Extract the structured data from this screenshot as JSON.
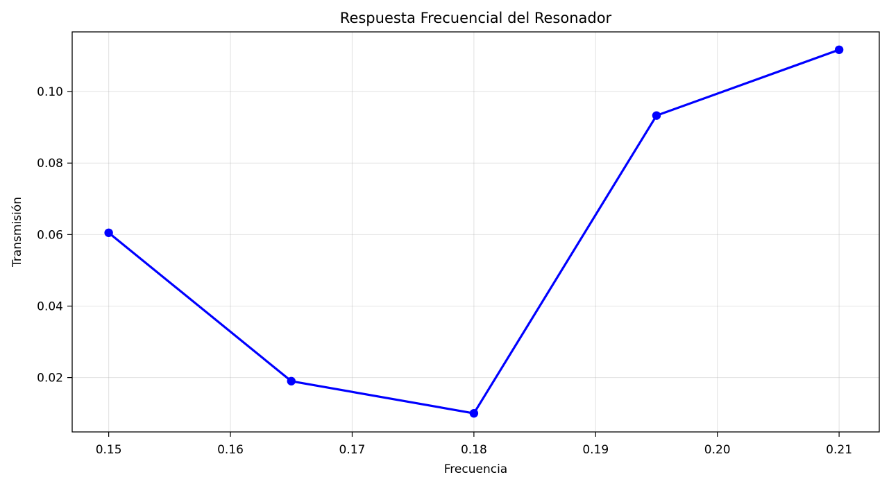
{
  "chart_data": {
    "type": "line",
    "title": "Respuesta Frecuencial del Resonador",
    "xlabel": "Frecuencia",
    "ylabel": "Transmisión",
    "x": [
      0.15,
      0.165,
      0.18,
      0.195,
      0.21
    ],
    "series": [
      {
        "values": [
          0.0605,
          0.019,
          0.01,
          0.0933,
          0.1117
        ],
        "color": "#0000ff",
        "marker": "circle"
      }
    ],
    "xlim": [
      0.147,
      0.2133
    ],
    "ylim": [
      0.0048,
      0.1167
    ],
    "xticks": [
      0.15,
      0.16,
      0.17,
      0.18,
      0.19,
      0.2,
      0.21
    ],
    "xtick_labels": [
      "0.15",
      "0.16",
      "0.17",
      "0.18",
      "0.19",
      "0.20",
      "0.21"
    ],
    "yticks": [
      0.02,
      0.04,
      0.06,
      0.08,
      0.1
    ],
    "ytick_labels": [
      "0.02",
      "0.04",
      "0.06",
      "0.08",
      "0.10"
    ],
    "grid": true,
    "legend": "none"
  }
}
